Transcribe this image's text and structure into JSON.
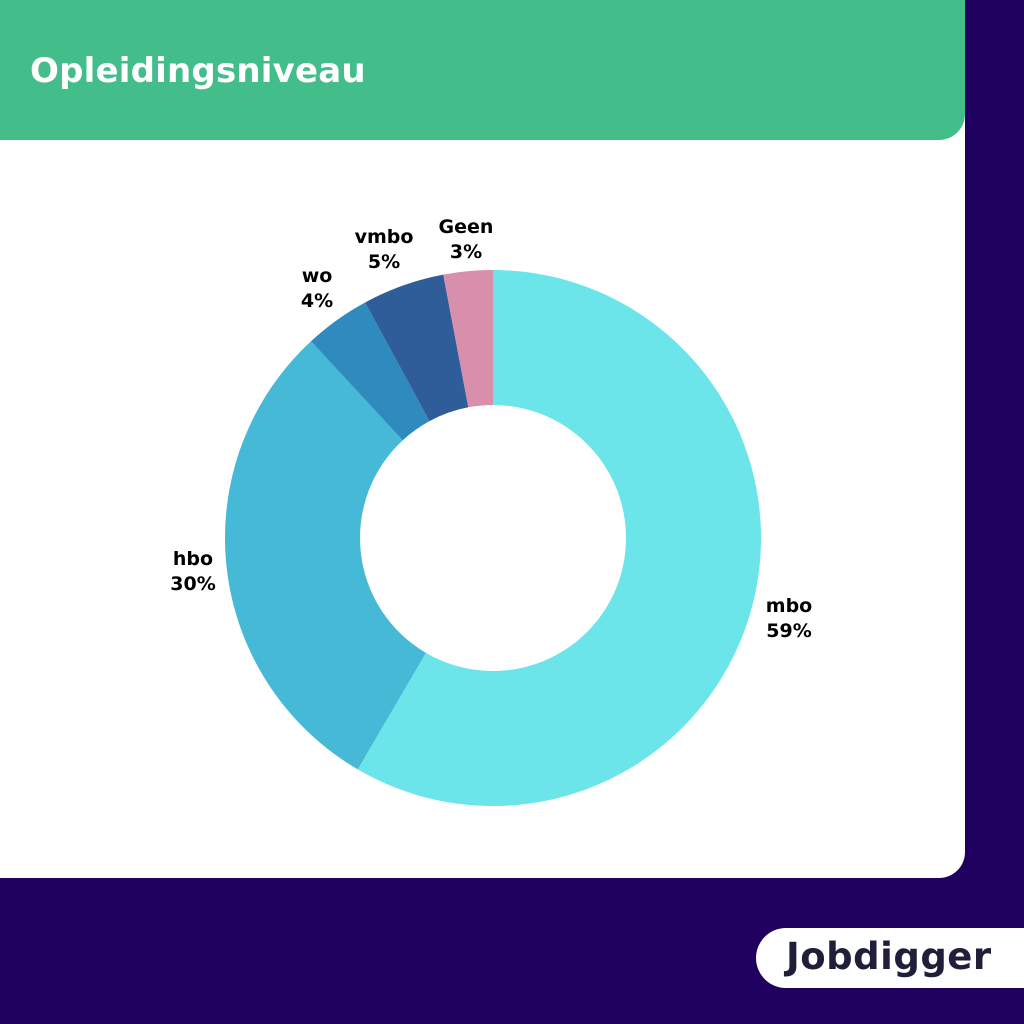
{
  "title": "Opleidingsniveau",
  "logo_text": "Jobdigger",
  "colors": {
    "background": "#1f005f",
    "header": "#43bd8a",
    "card": "#ffffff"
  },
  "chart_data": {
    "type": "pie",
    "variant": "donut",
    "title": "Opleidingsniveau",
    "categories": [
      "mbo",
      "hbo",
      "wo",
      "vmbo",
      "Geen"
    ],
    "values": [
      59,
      30,
      4,
      5,
      3
    ],
    "value_labels": [
      "59%",
      "30%",
      "4%",
      "5%",
      "3%"
    ],
    "colors": [
      "#6be5e9",
      "#46b9d6",
      "#2f8bbd",
      "#2e5d99",
      "#d78fab"
    ],
    "start": "12 o'clock, clockwise",
    "legend": "none"
  }
}
